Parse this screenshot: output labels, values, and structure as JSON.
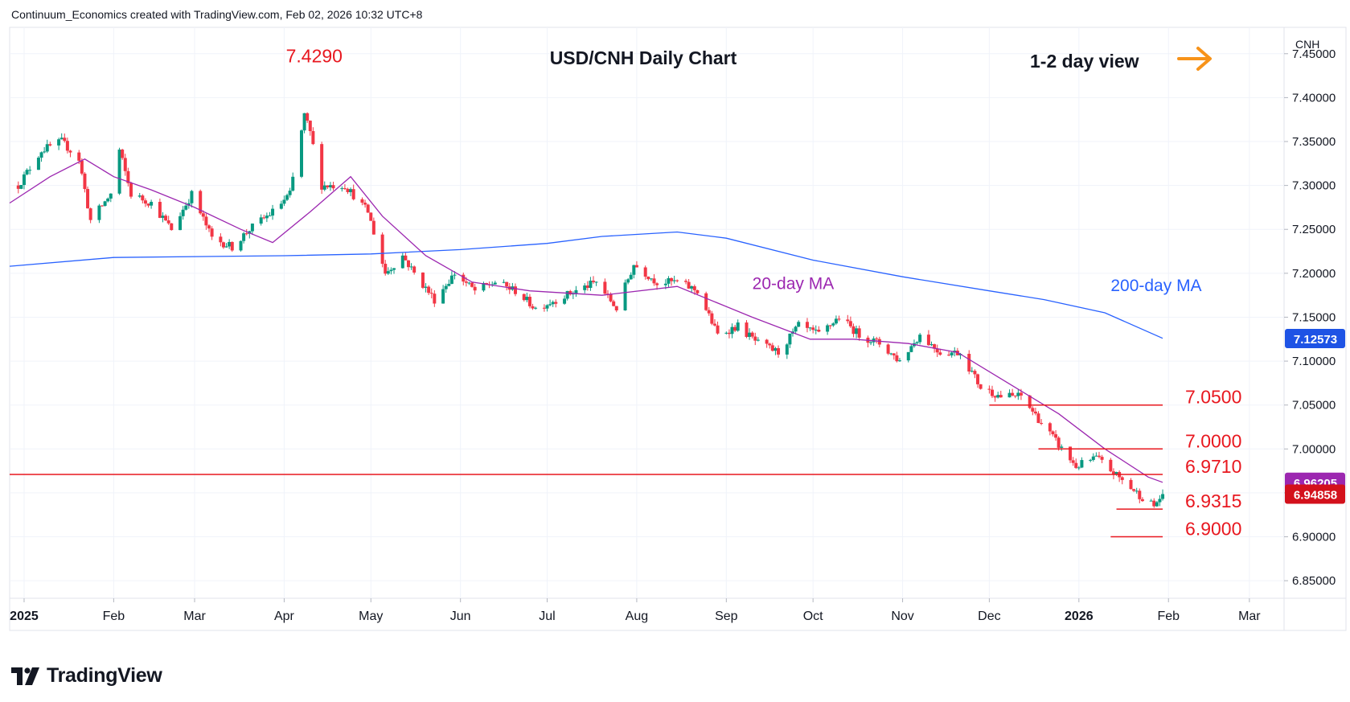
{
  "header": {
    "credit": "Continuum_Economics created with TradingView.com, Feb 02, 2026 10:32 UTC+8"
  },
  "footer": {
    "brand": "TradingView"
  },
  "colors": {
    "up": "#089981",
    "down": "#f23645",
    "ma20": "#9c27b0",
    "ma200": "#2962ff",
    "level": "#e8171f",
    "arrow": "#f7931a",
    "price_tag": "#d3111c",
    "ma200_tag": "#1e53e5"
  },
  "chart_data": {
    "type": "candlestick",
    "title": "USD/CNH Daily Chart",
    "view": {
      "label": "1-2 day view",
      "direction": "right-arrow-icon"
    },
    "currency_label": "CNH",
    "ylim": [
      6.83,
      7.48
    ],
    "y_ticks": [
      "7.45000",
      "7.40000",
      "7.35000",
      "7.30000",
      "7.25000",
      "7.20000",
      "7.15000",
      "7.10000",
      "7.05000",
      "7.00000",
      "6.95000",
      "6.90000",
      "6.85000"
    ],
    "x_range": [
      "2024-12-27",
      "2026-03-13"
    ],
    "x_ticks": [
      {
        "date": "2025-01-01",
        "label": "2025",
        "bold": true
      },
      {
        "date": "2025-02-01",
        "label": "Feb",
        "bold": false
      },
      {
        "date": "2025-03-01",
        "label": "Mar",
        "bold": false
      },
      {
        "date": "2025-04-01",
        "label": "Apr",
        "bold": false
      },
      {
        "date": "2025-05-01",
        "label": "May",
        "bold": false
      },
      {
        "date": "2025-06-01",
        "label": "Jun",
        "bold": false
      },
      {
        "date": "2025-07-01",
        "label": "Jul",
        "bold": false
      },
      {
        "date": "2025-08-01",
        "label": "Aug",
        "bold": false
      },
      {
        "date": "2025-09-01",
        "label": "Sep",
        "bold": false
      },
      {
        "date": "2025-10-01",
        "label": "Oct",
        "bold": false
      },
      {
        "date": "2025-11-01",
        "label": "Nov",
        "bold": false
      },
      {
        "date": "2025-12-01",
        "label": "Dec",
        "bold": false
      },
      {
        "date": "2026-01-01",
        "label": "2026",
        "bold": true
      },
      {
        "date": "2026-02-01",
        "label": "Feb",
        "bold": false
      },
      {
        "date": "2026-03-01",
        "label": "Mar",
        "bold": false
      }
    ],
    "price_path": [
      [
        "2024-12-30",
        7.3
      ],
      [
        "2025-01-07",
        7.34
      ],
      [
        "2025-01-14",
        7.35
      ],
      [
        "2025-01-20",
        7.33
      ],
      [
        "2025-01-24",
        7.26
      ],
      [
        "2025-01-31",
        7.29
      ],
      [
        "2025-02-03",
        7.34
      ],
      [
        "2025-02-07",
        7.29
      ],
      [
        "2025-02-14",
        7.28
      ],
      [
        "2025-02-21",
        7.25
      ],
      [
        "2025-02-28",
        7.29
      ],
      [
        "2025-03-07",
        7.24
      ],
      [
        "2025-03-14",
        7.23
      ],
      [
        "2025-03-20",
        7.25
      ],
      [
        "2025-03-28",
        7.27
      ],
      [
        "2025-04-03",
        7.29
      ],
      [
        "2025-04-08",
        7.38
      ],
      [
        "2025-04-10",
        7.36
      ],
      [
        "2025-04-14",
        7.3
      ],
      [
        "2025-04-22",
        7.3
      ],
      [
        "2025-04-30",
        7.27
      ],
      [
        "2025-05-06",
        7.2
      ],
      [
        "2025-05-12",
        7.22
      ],
      [
        "2025-05-16",
        7.2
      ],
      [
        "2025-05-23",
        7.17
      ],
      [
        "2025-05-30",
        7.2
      ],
      [
        "2025-06-06",
        7.18
      ],
      [
        "2025-06-13",
        7.19
      ],
      [
        "2025-06-20",
        7.18
      ],
      [
        "2025-06-27",
        7.16
      ],
      [
        "2025-07-04",
        7.17
      ],
      [
        "2025-07-11",
        7.18
      ],
      [
        "2025-07-18",
        7.19
      ],
      [
        "2025-07-25",
        7.16
      ],
      [
        "2025-07-31",
        7.21
      ],
      [
        "2025-08-08",
        7.19
      ],
      [
        "2025-08-15",
        7.19
      ],
      [
        "2025-08-22",
        7.18
      ],
      [
        "2025-08-29",
        7.13
      ],
      [
        "2025-09-05",
        7.14
      ],
      [
        "2025-09-12",
        7.12
      ],
      [
        "2025-09-19",
        7.11
      ],
      [
        "2025-09-26",
        7.14
      ],
      [
        "2025-10-03",
        7.13
      ],
      [
        "2025-10-10",
        7.15
      ],
      [
        "2025-10-17",
        7.13
      ],
      [
        "2025-10-24",
        7.12
      ],
      [
        "2025-10-31",
        7.1
      ],
      [
        "2025-11-07",
        7.13
      ],
      [
        "2025-11-14",
        7.11
      ],
      [
        "2025-11-21",
        7.11
      ],
      [
        "2025-11-28",
        7.07
      ],
      [
        "2025-12-05",
        7.06
      ],
      [
        "2025-12-12",
        7.06
      ],
      [
        "2025-12-19",
        7.03
      ],
      [
        "2025-12-26",
        7.0
      ],
      [
        "2025-12-31",
        6.98
      ],
      [
        "2026-01-07",
        6.99
      ],
      [
        "2026-01-14",
        6.97
      ],
      [
        "2026-01-21",
        6.95
      ],
      [
        "2026-01-27",
        6.935
      ],
      [
        "2026-01-30",
        6.9486
      ]
    ],
    "ma200_path": [
      [
        "2024-12-27",
        7.208
      ],
      [
        "2025-02-01",
        7.218
      ],
      [
        "2025-04-01",
        7.22
      ],
      [
        "2025-05-01",
        7.222
      ],
      [
        "2025-06-01",
        7.227
      ],
      [
        "2025-07-01",
        7.234
      ],
      [
        "2025-07-20",
        7.242
      ],
      [
        "2025-08-15",
        7.247
      ],
      [
        "2025-09-01",
        7.24
      ],
      [
        "2025-10-01",
        7.215
      ],
      [
        "2025-11-01",
        7.196
      ],
      [
        "2025-12-01",
        7.18
      ],
      [
        "2025-12-20",
        7.17
      ],
      [
        "2026-01-10",
        7.155
      ],
      [
        "2026-01-30",
        7.126
      ]
    ],
    "ma20_path": [
      [
        "2024-12-27",
        7.28
      ],
      [
        "2025-01-10",
        7.31
      ],
      [
        "2025-01-22",
        7.33
      ],
      [
        "2025-02-01",
        7.31
      ],
      [
        "2025-02-14",
        7.295
      ],
      [
        "2025-03-01",
        7.275
      ],
      [
        "2025-03-17",
        7.25
      ],
      [
        "2025-03-28",
        7.235
      ],
      [
        "2025-04-10",
        7.27
      ],
      [
        "2025-04-24",
        7.31
      ],
      [
        "2025-05-05",
        7.265
      ],
      [
        "2025-05-20",
        7.22
      ],
      [
        "2025-06-05",
        7.19
      ],
      [
        "2025-06-25",
        7.18
      ],
      [
        "2025-07-20",
        7.175
      ],
      [
        "2025-08-15",
        7.185
      ],
      [
        "2025-09-10",
        7.15
      ],
      [
        "2025-09-30",
        7.125
      ],
      [
        "2025-10-15",
        7.125
      ],
      [
        "2025-11-03",
        7.12
      ],
      [
        "2025-11-20",
        7.11
      ],
      [
        "2025-12-10",
        7.07
      ],
      [
        "2025-12-25",
        7.04
      ],
      [
        "2026-01-10",
        7.0
      ],
      [
        "2026-01-25",
        6.968
      ],
      [
        "2026-01-30",
        6.962
      ]
    ],
    "levels": [
      {
        "value": 7.05,
        "label": "7.0500",
        "from": "2025-12-01",
        "to": "2026-01-30"
      },
      {
        "value": 7.0,
        "label": "7.0000",
        "from": "2025-12-18",
        "to": "2026-01-30"
      },
      {
        "value": 6.971,
        "label": "6.9710",
        "from": "2024-12-27",
        "to": "2026-01-30"
      },
      {
        "value": 6.9315,
        "label": "6.9315",
        "from": "2026-01-14",
        "to": "2026-01-30"
      },
      {
        "value": 6.9,
        "label": "6.9000",
        "from": "2026-01-12",
        "to": "2026-01-30"
      }
    ],
    "annotations": [
      {
        "text": "7.4290",
        "date": "2025-04-10",
        "value": 7.429
      },
      {
        "text": "20-day MA",
        "date": "2025-09-10",
        "value": 7.18
      },
      {
        "text": "200-day MA",
        "date": "2026-01-12",
        "value": 7.178
      }
    ],
    "price_tags": [
      {
        "text": "7.12573",
        "value": 7.12573,
        "kind": "ma200"
      },
      {
        "text": "6.96205",
        "value": 6.96205,
        "kind": "ma20"
      },
      {
        "text": "6.94858",
        "value": 6.94858,
        "kind": "price"
      }
    ]
  }
}
